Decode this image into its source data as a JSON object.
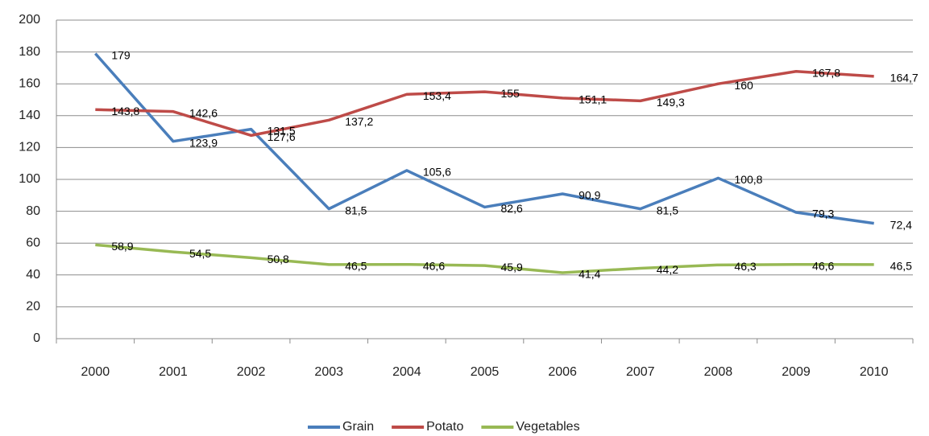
{
  "chart_data": {
    "type": "line",
    "categories": [
      "2000",
      "2001",
      "2002",
      "2003",
      "2004",
      "2005",
      "2006",
      "2007",
      "2008",
      "2009",
      "2010"
    ],
    "series": [
      {
        "name": "Grain",
        "color": "#4a7ebb",
        "values": [
          179,
          123.9,
          131.5,
          81.5,
          105.6,
          82.6,
          90.9,
          81.5,
          100.8,
          79.3,
          72.4
        ],
        "value_labels": [
          "179",
          "123,9",
          "131,5",
          "81,5",
          "105,6",
          "82,6",
          "90,9",
          "81,5",
          "100,8",
          "79,3",
          "72,4"
        ]
      },
      {
        "name": "Potato",
        "color": "#be4b48",
        "values": [
          143.8,
          142.6,
          127.6,
          137.2,
          153.4,
          155,
          151.1,
          149.3,
          160,
          167.8,
          164.7
        ],
        "value_labels": [
          "143,8",
          "142,6",
          "127,6",
          "137,2",
          "153,4",
          "155",
          "151,1",
          "149,3",
          "160",
          "167,8",
          "164,7"
        ]
      },
      {
        "name": "Vegetables",
        "color": "#98b954",
        "values": [
          58.9,
          54.5,
          50.8,
          46.5,
          46.6,
          45.9,
          41.4,
          44.2,
          46.3,
          46.6,
          46.5
        ],
        "value_labels": [
          "58,9",
          "54,5",
          "50,8",
          "46,5",
          "46,6",
          "45,9",
          "41,4",
          "44,2",
          "46,3",
          "46,6",
          "46,5"
        ]
      }
    ],
    "ylim": [
      0,
      200
    ],
    "yticks": [
      0,
      20,
      40,
      60,
      80,
      100,
      120,
      140,
      160,
      180,
      200
    ],
    "grid": true,
    "legend": "bottom"
  }
}
